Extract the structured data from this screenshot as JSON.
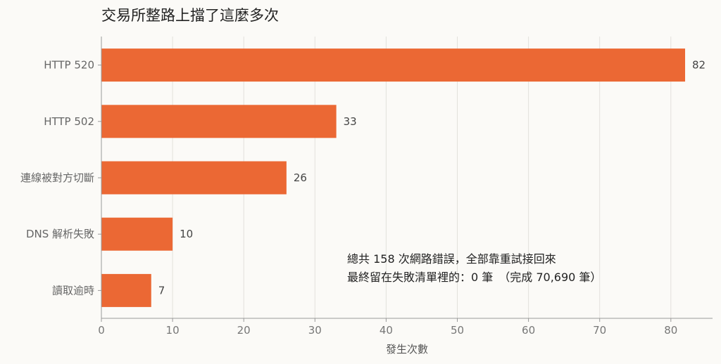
{
  "chart_data": {
    "type": "bar",
    "orientation": "horizontal",
    "title": "交易所整路上擋了這麼多次",
    "xlabel": "發生次數",
    "ylabel": "",
    "categories": [
      "HTTP 520",
      "HTTP 502",
      "連線被對方切斷",
      "DNS 解析失敗",
      "讀取逾時"
    ],
    "values": [
      82,
      33,
      26,
      10,
      7
    ],
    "xlim": [
      0,
      85
    ],
    "xticks": [
      0,
      10,
      20,
      30,
      40,
      50,
      60,
      70,
      80
    ],
    "grid": true,
    "bar_color": "#eb6834",
    "annotation": {
      "line1": "總共 158 次網路錯誤，全部靠重試接回來",
      "line2": "最終留在失敗清單裡的：0 筆　（完成 70,690 筆）"
    }
  }
}
